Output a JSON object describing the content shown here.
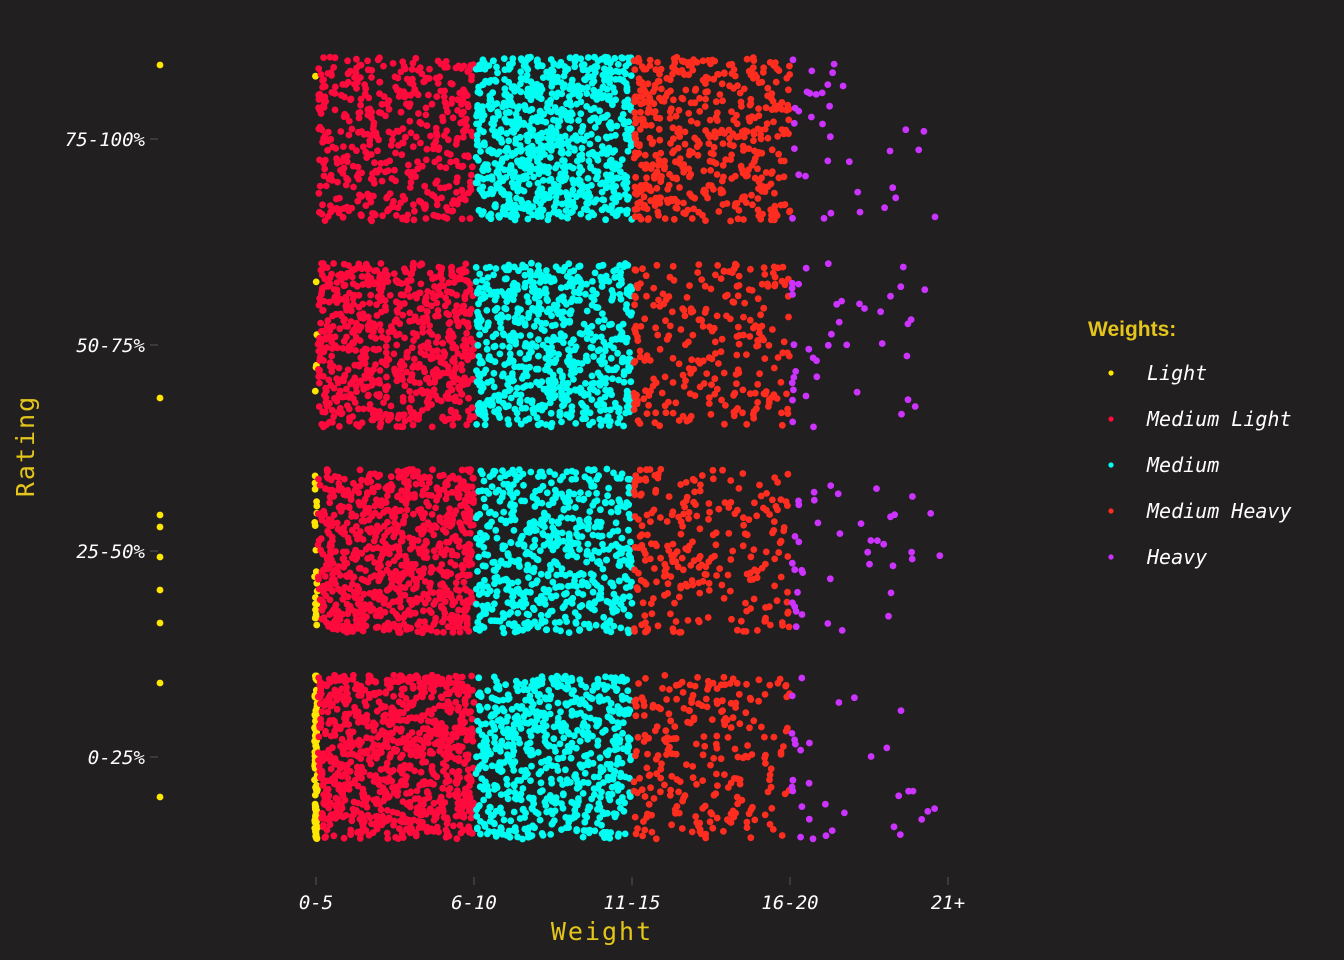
{
  "chart_data": {
    "type": "scatter",
    "subtype": "jitter-strip",
    "title": "",
    "xlabel": "Weight",
    "ylabel": "Rating",
    "x_categories": [
      "0-5",
      "6-10",
      "11-15",
      "16-20",
      "21+"
    ],
    "y_categories": [
      "0-25%",
      "25-50%",
      "50-75%",
      "75-100%"
    ],
    "grid": false,
    "legend": {
      "title": "Weights:",
      "position": "right"
    },
    "series": [
      {
        "name": "Light",
        "color": "#ffe600",
        "x_range": [
          "0-5"
        ],
        "approx_counts": {
          "0-25%": 115,
          "25-50%": 22,
          "50-75%": 5,
          "75-100%": 1
        },
        "outlier_count": 9
      },
      {
        "name": "Medium Light",
        "color": "#ff0a3c",
        "x_range": [
          "0-5",
          "6-10"
        ],
        "approx_counts": {
          "0-25%": 900,
          "25-50%": 800,
          "50-75%": 700,
          "75-100%": 450
        }
      },
      {
        "name": "Medium",
        "color": "#00fff2",
        "x_range": [
          "6-10",
          "11-15"
        ],
        "approx_counts": {
          "0-25%": 650,
          "25-50%": 600,
          "50-75%": 650,
          "75-100%": 850
        }
      },
      {
        "name": "Medium Heavy",
        "color": "#ff2d1f",
        "x_range": [
          "11-15",
          "16-20"
        ],
        "approx_counts": {
          "0-25%": 250,
          "25-50%": 250,
          "50-75%": 260,
          "75-100%": 480
        }
      },
      {
        "name": "Heavy",
        "color": "#cc33ff",
        "x_range": [
          "16-20",
          "21+"
        ],
        "approx_counts": {
          "0-25%": 32,
          "25-50%": 40,
          "50-75%": 40,
          "75-100%": 35
        }
      }
    ]
  }
}
